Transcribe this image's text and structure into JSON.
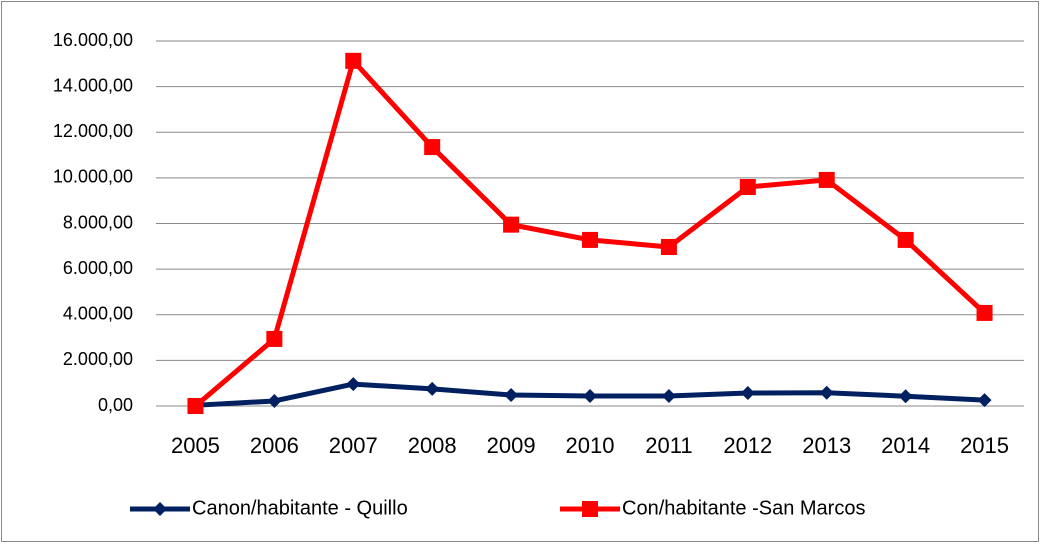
{
  "chart_data": {
    "type": "line",
    "categories": [
      "2005",
      "2006",
      "2007",
      "2008",
      "2009",
      "2010",
      "2011",
      "2012",
      "2013",
      "2014",
      "2015"
    ],
    "series": [
      {
        "name": "Canon/habitante - Quillo",
        "color": "#002060",
        "marker": "diamond",
        "values": [
          30,
          220,
          960,
          750,
          480,
          440,
          440,
          570,
          580,
          430,
          260
        ]
      },
      {
        "name": "Con/habitante -San Marcos",
        "color": "#ff0000",
        "marker": "square",
        "values": [
          0,
          2940,
          15130,
          11350,
          7950,
          7280,
          6970,
          9600,
          9910,
          7280,
          4080
        ]
      }
    ],
    "ylim": [
      0,
      16000
    ],
    "yticks": [
      {
        "value": 0,
        "label": "0,00"
      },
      {
        "value": 2000,
        "label": "2.000,00"
      },
      {
        "value": 4000,
        "label": "4.000,00"
      },
      {
        "value": 6000,
        "label": "6.000,00"
      },
      {
        "value": 8000,
        "label": "8.000,00"
      },
      {
        "value": 10000,
        "label": "10.000,00"
      },
      {
        "value": 12000,
        "label": "12.000,00"
      },
      {
        "value": 14000,
        "label": "14.000,00"
      },
      {
        "value": 16000,
        "label": "16.000,00"
      }
    ],
    "grid": true,
    "legend": "bottom"
  }
}
